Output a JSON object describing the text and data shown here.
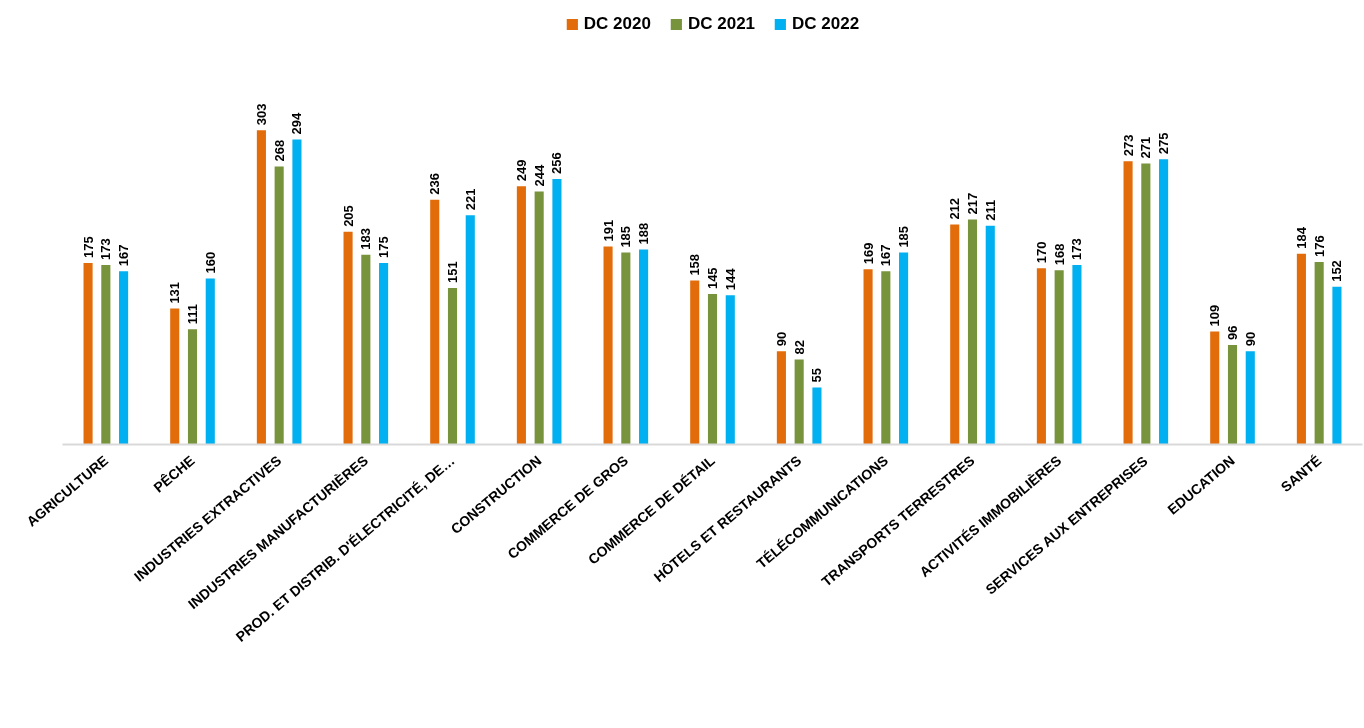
{
  "chart_data": {
    "type": "bar",
    "categories": [
      "AGRICULTURE",
      "PÊCHE",
      "INDUSTRIES EXTRACTIVES",
      "INDUSTRIES MANUFACTURIÈRES",
      "PROD. ET DISTRIB. D'ÉLECTRICITÉ, DE…",
      "CONSTRUCTION",
      "COMMERCE DE GROS",
      "COMMERCE DE DÉTAIL",
      "HÔTELS ET RESTAURANTS",
      "TÉLÉCOMMUNICATIONS",
      "TRANSPORTS TERRESTRES",
      "ACTIVITÉS IMMOBILIÈRES",
      "SERVICES AUX ENTREPRISES",
      "EDUCATION",
      "SANTÉ"
    ],
    "series": [
      {
        "name": "DC 2020",
        "color": "#e36c0a",
        "values": [
          175,
          131,
          303,
          205,
          236,
          249,
          191,
          158,
          90,
          169,
          212,
          170,
          273,
          109,
          184
        ]
      },
      {
        "name": "DC 2021",
        "color": "#77933c",
        "values": [
          173,
          111,
          268,
          183,
          151,
          244,
          185,
          145,
          82,
          167,
          217,
          168,
          271,
          96,
          176
        ]
      },
      {
        "name": "DC 2022",
        "color": "#00b0f0",
        "values": [
          167,
          160,
          294,
          175,
          221,
          256,
          188,
          144,
          55,
          185,
          211,
          173,
          275,
          90,
          152
        ]
      }
    ],
    "data_labels": true,
    "legend": "top",
    "grid": false,
    "tick_labels": "x"
  }
}
